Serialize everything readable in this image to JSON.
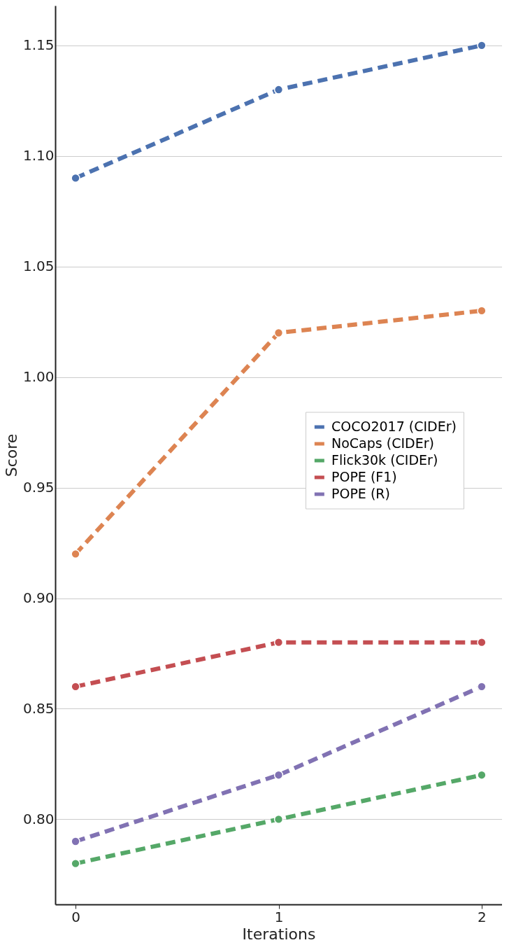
{
  "chart_data": {
    "type": "line",
    "xlabel": "Iterations",
    "ylabel": "Score",
    "x": [
      0,
      1,
      2
    ],
    "series": [
      {
        "name": "COCO2017 (CIDEr)",
        "color": "#4c72b0",
        "values": [
          1.09,
          1.13,
          1.15
        ]
      },
      {
        "name": "NoCaps (CIDEr)",
        "color": "#dd8452",
        "values": [
          0.92,
          1.02,
          1.03
        ]
      },
      {
        "name": "Flick30k (CIDEr)",
        "color": "#55a868",
        "values": [
          0.78,
          0.8,
          0.82
        ]
      },
      {
        "name": "POPE (F1)",
        "color": "#c44e52",
        "values": [
          0.86,
          0.88,
          0.88
        ]
      },
      {
        "name": "POPE (R)",
        "color": "#8172b3",
        "values": [
          0.79,
          0.82,
          0.86
        ]
      }
    ],
    "xlim": [
      -0.1,
      2.1
    ],
    "xticks": [
      0,
      1,
      2
    ],
    "ylim": [
      0.7615,
      1.168
    ],
    "yticks": [
      {
        "value": 0.8,
        "label": "0.80"
      },
      0.85,
      {
        "value": 0.9,
        "label": "0.90"
      },
      0.95,
      {
        "value": 1.0,
        "label": "1.00"
      },
      1.05,
      {
        "value": 1.1,
        "label": "1.10"
      },
      1.15
    ],
    "grid": "y",
    "legend": "center right",
    "marker": "circle",
    "line_style": "dashed"
  }
}
